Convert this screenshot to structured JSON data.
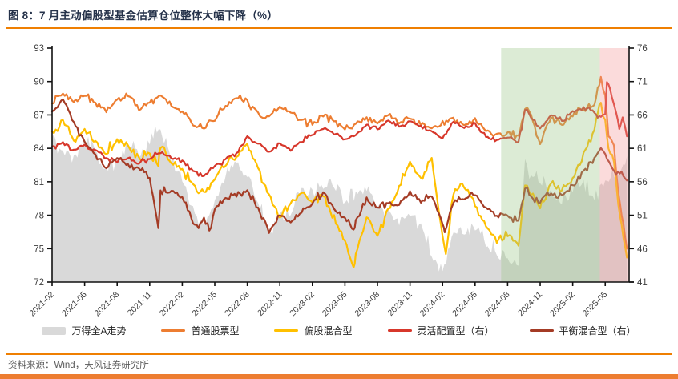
{
  "page": {
    "title": "图 8：7 月主动偏股型基金估算仓位整体大幅下降（%）",
    "source": "资料来源：Wind，天风证券研究所",
    "accent_color": "#ef7f01",
    "background_color": "#ffffff"
  },
  "chart_data": {
    "type": "line",
    "title": "7 月主动偏股型基金估算仓位整体大幅下降（%）",
    "x_unit": "month",
    "x_start": "2021-02",
    "x_end": "2025-07",
    "months_total": 53.2,
    "grid": false,
    "legend_position": "bottom",
    "x_tick_labels": [
      "2021-02",
      "2021-05",
      "2021-08",
      "2021-11",
      "2022-02",
      "2022-05",
      "2022-08",
      "2022-11",
      "2023-02",
      "2023-05",
      "2023-08",
      "2023-11",
      "2024-02",
      "2024-05",
      "2024-08",
      "2024-11",
      "2025-02",
      "2025-05"
    ],
    "x_tick_month_index": [
      0,
      3,
      6,
      9,
      12,
      15,
      18,
      21,
      24,
      27,
      30,
      33,
      36,
      39,
      42,
      45,
      48,
      51
    ],
    "left_axis": {
      "min": 72,
      "max": 93,
      "ticks": [
        93,
        90,
        87,
        84,
        81,
        78,
        75,
        72
      ]
    },
    "right_axis": {
      "min": 41,
      "max": 76,
      "ticks": [
        76,
        71,
        66,
        61,
        56,
        51,
        46,
        41
      ]
    },
    "bands": [
      {
        "name": "policy-rally-band",
        "from_month": 41.4,
        "to_month": 50.5,
        "color": "rgba(154,197,134,0.35)"
      },
      {
        "name": "july-drawdown-band",
        "from_month": 50.5,
        "to_month": 53.2,
        "color": "rgba(243,151,151,0.35)"
      }
    ],
    "series": [
      {
        "name": "万得全A走势",
        "axis": "left",
        "style": "area",
        "color": "#d9d9d9",
        "line_width": 0,
        "seed": 7,
        "noise": 0.7,
        "points": [
          [
            0,
            85.3
          ],
          [
            1,
            83.6
          ],
          [
            2,
            83.2
          ],
          [
            3,
            84.6
          ],
          [
            4,
            84.0
          ],
          [
            5,
            82.0
          ],
          [
            6,
            83.2
          ],
          [
            7,
            84.4
          ],
          [
            8,
            83.4
          ],
          [
            9,
            84.6
          ],
          [
            10,
            85.8
          ],
          [
            11,
            83.0
          ],
          [
            12,
            81.4
          ],
          [
            13,
            78.6
          ],
          [
            14,
            77.0
          ],
          [
            15,
            79.0
          ],
          [
            16,
            81.6
          ],
          [
            17,
            82.4
          ],
          [
            18,
            81.8
          ],
          [
            19,
            79.4
          ],
          [
            20,
            76.6
          ],
          [
            21,
            78.0
          ],
          [
            22,
            78.4
          ],
          [
            23,
            80.4
          ],
          [
            24,
            80.0
          ],
          [
            25,
            80.4
          ],
          [
            26,
            80.8
          ],
          [
            27,
            79.4
          ],
          [
            28,
            79.8
          ],
          [
            29,
            80.4
          ],
          [
            30,
            79.0
          ],
          [
            31,
            78.4
          ],
          [
            32,
            77.4
          ],
          [
            33,
            78.2
          ],
          [
            34,
            77.0
          ],
          [
            35,
            74.6
          ],
          [
            36,
            72.8
          ],
          [
            37,
            76.6
          ],
          [
            38,
            76.4
          ],
          [
            39,
            77.0
          ],
          [
            40,
            75.4
          ],
          [
            41,
            74.6
          ],
          [
            42,
            74.0
          ],
          [
            43,
            73.4
          ],
          [
            43.6,
            83.0
          ],
          [
            44,
            81.6
          ],
          [
            45,
            81.0
          ],
          [
            46,
            80.0
          ],
          [
            47,
            79.2
          ],
          [
            48,
            80.2
          ],
          [
            49,
            80.8
          ],
          [
            50,
            79.6
          ],
          [
            51,
            81.0
          ],
          [
            52,
            81.8
          ],
          [
            53,
            83.3
          ]
        ]
      },
      {
        "name": "普通股票型",
        "axis": "left",
        "style": "line",
        "color": "#ed7d31",
        "line_width": 2.2,
        "seed": 11,
        "noise": 0.3,
        "points": [
          [
            0,
            88.2
          ],
          [
            1,
            89.0
          ],
          [
            2,
            88.2
          ],
          [
            3,
            88.8
          ],
          [
            4,
            88.0
          ],
          [
            5,
            87.4
          ],
          [
            6,
            88.5
          ],
          [
            7,
            88.8
          ],
          [
            8,
            87.6
          ],
          [
            9,
            88.2
          ],
          [
            10,
            88.6
          ],
          [
            11,
            87.8
          ],
          [
            12,
            87.2
          ],
          [
            13,
            86.2
          ],
          [
            14,
            85.8
          ],
          [
            15,
            86.6
          ],
          [
            16,
            87.8
          ],
          [
            17,
            88.6
          ],
          [
            18,
            88.2
          ],
          [
            19,
            87.2
          ],
          [
            20,
            86.8
          ],
          [
            21,
            87.9
          ],
          [
            22,
            87.2
          ],
          [
            23,
            86.6
          ],
          [
            24,
            86.2
          ],
          [
            25,
            87.0
          ],
          [
            26,
            86.4
          ],
          [
            27,
            85.8
          ],
          [
            28,
            86.2
          ],
          [
            29,
            86.8
          ],
          [
            30,
            86.2
          ],
          [
            31,
            86.9
          ],
          [
            32,
            86.3
          ],
          [
            33,
            86.8
          ],
          [
            34,
            86.2
          ],
          [
            35,
            85.8
          ],
          [
            36,
            86.3
          ],
          [
            37,
            86.6
          ],
          [
            38,
            86.1
          ],
          [
            39,
            86.6
          ],
          [
            40,
            85.6
          ],
          [
            41,
            85.2
          ],
          [
            42,
            85.5
          ],
          [
            43,
            85.0
          ],
          [
            43.6,
            87.6
          ],
          [
            44,
            87.2
          ],
          [
            45,
            84.4
          ],
          [
            46,
            86.8
          ],
          [
            47,
            86.2
          ],
          [
            48,
            87.0
          ],
          [
            49,
            87.4
          ],
          [
            50,
            88.0
          ],
          [
            50.6,
            90.3
          ],
          [
            51,
            88.6
          ],
          [
            51.3,
            85.0
          ],
          [
            51.8,
            84.3
          ],
          [
            52.2,
            80.0
          ],
          [
            53,
            75.0
          ]
        ]
      },
      {
        "name": "偏股混合型",
        "axis": "left",
        "style": "line",
        "color": "#ffc000",
        "line_width": 2.2,
        "seed": 23,
        "noise": 0.4,
        "points": [
          [
            0,
            85.4
          ],
          [
            1,
            86.4
          ],
          [
            2,
            84.8
          ],
          [
            3,
            85.6
          ],
          [
            4,
            84.6
          ],
          [
            5,
            83.6
          ],
          [
            6,
            84.8
          ],
          [
            7,
            84.2
          ],
          [
            8,
            83.0
          ],
          [
            9,
            83.6
          ],
          [
            9.8,
            82.2
          ],
          [
            10,
            84.2
          ],
          [
            11,
            82.6
          ],
          [
            12,
            82.0
          ],
          [
            13,
            80.6
          ],
          [
            14,
            80.0
          ],
          [
            15,
            81.2
          ],
          [
            16,
            82.6
          ],
          [
            17,
            83.4
          ],
          [
            18,
            84.4
          ],
          [
            19,
            82.0
          ],
          [
            20,
            79.8
          ],
          [
            21,
            77.8
          ],
          [
            22,
            79.2
          ],
          [
            23,
            80.0
          ],
          [
            24,
            79.2
          ],
          [
            25,
            79.8
          ],
          [
            26,
            77.8
          ],
          [
            27,
            75.8
          ],
          [
            27.8,
            73.4
          ],
          [
            28,
            74.6
          ],
          [
            29,
            77.9
          ],
          [
            30,
            76.2
          ],
          [
            31,
            78.5
          ],
          [
            32,
            80.5
          ],
          [
            33,
            82.8
          ],
          [
            34,
            81.2
          ],
          [
            35,
            83.0
          ],
          [
            36,
            76.0
          ],
          [
            36.3,
            74.6
          ],
          [
            37,
            80.0
          ],
          [
            38,
            80.6
          ],
          [
            39,
            79.0
          ],
          [
            40,
            77.0
          ],
          [
            41,
            75.6
          ],
          [
            42,
            76.3
          ],
          [
            43,
            75.3
          ],
          [
            43.6,
            80.8
          ],
          [
            44,
            80.2
          ],
          [
            45,
            78.8
          ],
          [
            46,
            81.0
          ],
          [
            47,
            80.2
          ],
          [
            48,
            81.5
          ],
          [
            49,
            83.5
          ],
          [
            50,
            85.5
          ],
          [
            50.6,
            88.3
          ],
          [
            51,
            86.4
          ],
          [
            51.3,
            84.0
          ],
          [
            51.8,
            83.0
          ],
          [
            52.2,
            79.0
          ],
          [
            53,
            74.2
          ]
        ]
      },
      {
        "name": "灵活配置型（右）",
        "axis": "right",
        "style": "line",
        "color": "#d7372b",
        "line_width": 2.2,
        "seed": 31,
        "noise": 0.35,
        "points": [
          [
            0,
            61.2
          ],
          [
            1,
            61.8
          ],
          [
            2,
            60.8
          ],
          [
            3,
            61.4
          ],
          [
            4,
            60.6
          ],
          [
            5,
            59.6
          ],
          [
            6,
            59.0
          ],
          [
            7,
            59.6
          ],
          [
            8,
            58.8
          ],
          [
            9,
            59.4
          ],
          [
            10,
            60.4
          ],
          [
            11,
            59.6
          ],
          [
            12,
            59.0
          ],
          [
            13,
            57.6
          ],
          [
            14,
            57.0
          ],
          [
            15,
            58.2
          ],
          [
            16,
            59.4
          ],
          [
            17,
            60.2
          ],
          [
            18,
            62.8
          ],
          [
            19,
            61.6
          ],
          [
            20,
            60.6
          ],
          [
            21,
            61.6
          ],
          [
            22,
            60.8
          ],
          [
            23,
            62.0
          ],
          [
            24,
            63.2
          ],
          [
            25,
            64.0
          ],
          [
            26,
            63.2
          ],
          [
            27,
            62.4
          ],
          [
            28,
            63.0
          ],
          [
            29,
            64.4
          ],
          [
            30,
            64.0
          ],
          [
            31,
            65.0
          ],
          [
            32,
            64.2
          ],
          [
            33,
            65.0
          ],
          [
            34,
            64.2
          ],
          [
            35,
            63.6
          ],
          [
            36,
            62.6
          ],
          [
            37,
            65.0
          ],
          [
            38,
            64.2
          ],
          [
            39,
            64.6
          ],
          [
            40,
            62.8
          ],
          [
            41,
            62.2
          ],
          [
            42,
            62.6
          ],
          [
            43,
            62.0
          ],
          [
            43.6,
            66.6
          ],
          [
            44,
            66.0
          ],
          [
            45,
            63.8
          ],
          [
            46,
            66.0
          ],
          [
            47,
            65.2
          ],
          [
            48,
            66.4
          ],
          [
            49,
            67.0
          ],
          [
            50,
            66.4
          ],
          [
            50.6,
            65.6
          ],
          [
            51,
            66.0
          ],
          [
            51.15,
            70.9
          ],
          [
            51.6,
            68.8
          ],
          [
            52,
            66.2
          ],
          [
            52.3,
            63.9
          ],
          [
            52.6,
            65.6
          ],
          [
            53,
            62.8
          ]
        ]
      },
      {
        "name": "平衡混合型（右）",
        "axis": "right",
        "style": "line",
        "color": "#a43b25",
        "line_width": 2.2,
        "seed": 43,
        "noise": 0.45,
        "points": [
          [
            0,
            66.6
          ],
          [
            1,
            68.4
          ],
          [
            2,
            65.0
          ],
          [
            3,
            62.0
          ],
          [
            4,
            60.0
          ],
          [
            5,
            58.0
          ],
          [
            6,
            59.5
          ],
          [
            7,
            58.5
          ],
          [
            8,
            58.2
          ],
          [
            9,
            56.5
          ],
          [
            9.8,
            49.0
          ],
          [
            10,
            54.5
          ],
          [
            11,
            54.8
          ],
          [
            12,
            53.5
          ],
          [
            13,
            50.0
          ],
          [
            13.5,
            49.2
          ],
          [
            14,
            50.5
          ],
          [
            14.5,
            48.6
          ],
          [
            15,
            52.0
          ],
          [
            16,
            53.5
          ],
          [
            17,
            54.0
          ],
          [
            18,
            54.5
          ],
          [
            19,
            52.0
          ],
          [
            20,
            48.5
          ],
          [
            21,
            51.0
          ],
          [
            22,
            50.0
          ],
          [
            23,
            51.5
          ],
          [
            24,
            53.0
          ],
          [
            25,
            54.5
          ],
          [
            26,
            52.0
          ],
          [
            27,
            50.5
          ],
          [
            27.8,
            49.0
          ],
          [
            28,
            50.2
          ],
          [
            29,
            53.5
          ],
          [
            30,
            52.0
          ],
          [
            31,
            53.0
          ],
          [
            32,
            52.5
          ],
          [
            33,
            54.5
          ],
          [
            34,
            53.0
          ],
          [
            35,
            54.0
          ],
          [
            36,
            49.8
          ],
          [
            36.2,
            48.6
          ],
          [
            37,
            53.0
          ],
          [
            38,
            53.6
          ],
          [
            39,
            54.2
          ],
          [
            40,
            52.0
          ],
          [
            41,
            51.0
          ],
          [
            42,
            50.8
          ],
          [
            43,
            50.2
          ],
          [
            43.6,
            54.8
          ],
          [
            44,
            54.2
          ],
          [
            45,
            52.8
          ],
          [
            46,
            54.5
          ],
          [
            47,
            53.8
          ],
          [
            48,
            55.5
          ],
          [
            49,
            57.5
          ],
          [
            50,
            59.5
          ],
          [
            50.6,
            61.0
          ],
          [
            51,
            60.0
          ],
          [
            51.5,
            58.5
          ],
          [
            52,
            57.0
          ],
          [
            52.5,
            57.6
          ],
          [
            53,
            56.2
          ]
        ]
      }
    ]
  }
}
